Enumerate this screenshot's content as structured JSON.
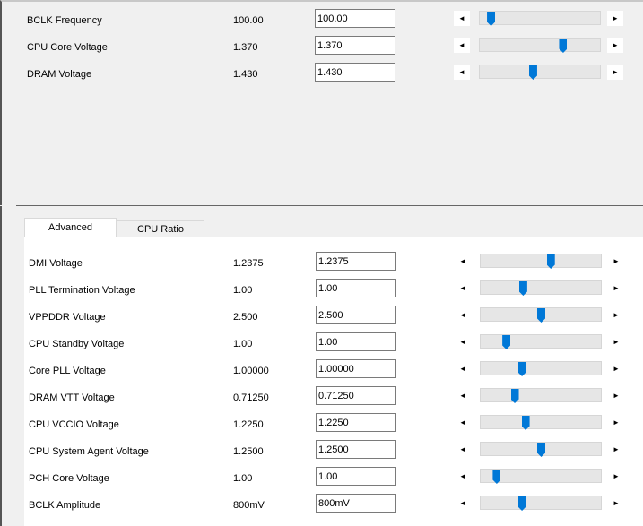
{
  "top_settings": [
    {
      "label": "BCLK Frequency",
      "value": "100.00",
      "input": "100.00",
      "slider": 0.09
    },
    {
      "label": "CPU Core Voltage",
      "value": "1.370",
      "input": "1.370",
      "slider": 0.69
    },
    {
      "label": "DRAM Voltage",
      "value": "1.430",
      "input": "1.430",
      "slider": 0.44
    }
  ],
  "tabs": [
    {
      "label": "Advanced",
      "active": true
    },
    {
      "label": "CPU Ratio",
      "active": false
    }
  ],
  "advanced_settings": [
    {
      "label": "DMI Voltage",
      "value": "1.2375",
      "input": "1.2375",
      "slider": 0.58
    },
    {
      "label": "PLL Termination Voltage",
      "value": "1.00",
      "input": "1.00",
      "slider": 0.35
    },
    {
      "label": "VPPDDR Voltage",
      "value": "2.500",
      "input": "2.500",
      "slider": 0.5
    },
    {
      "label": "CPU Standby Voltage",
      "value": "1.00",
      "input": "1.00",
      "slider": 0.21
    },
    {
      "label": "Core PLL Voltage",
      "value": "1.00000",
      "input": "1.00000",
      "slider": 0.34
    },
    {
      "label": "DRAM VTT Voltage",
      "value": "0.71250",
      "input": "0.71250",
      "slider": 0.28
    },
    {
      "label": "CPU VCCIO Voltage",
      "value": "1.2250",
      "input": "1.2250",
      "slider": 0.37
    },
    {
      "label": "CPU System Agent Voltage",
      "value": "1.2500",
      "input": "1.2500",
      "slider": 0.5
    },
    {
      "label": "PCH Core Voltage",
      "value": "1.00",
      "input": "1.00",
      "slider": 0.13
    },
    {
      "label": "BCLK Amplitude",
      "value": "800mV",
      "input": "800mV",
      "slider": 0.34
    }
  ],
  "icons": {
    "left": "◄",
    "right": "►"
  },
  "colors": {
    "thumb": "#0078d7"
  }
}
